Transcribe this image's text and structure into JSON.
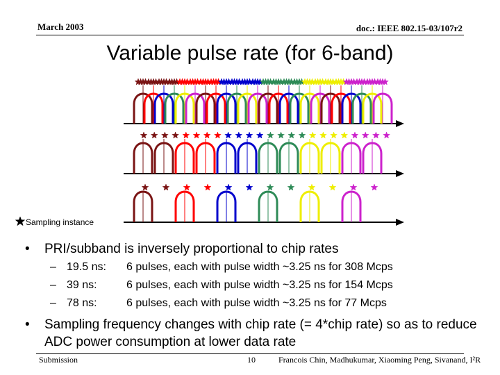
{
  "header": {
    "date": "March 2003",
    "doc_id": "doc.: IEEE 802.15-03/107r2"
  },
  "title": "Variable pulse rate (for 6-band)",
  "legend": {
    "label": "Sampling instance"
  },
  "colors": {
    "palette": [
      "#7a1414",
      "#ff0000",
      "#0000cc",
      "#2e8b57",
      "#eeee00",
      "#cc22cc"
    ],
    "star_row2": [
      "#7a1414",
      "#ff0000",
      "#0000cc",
      "#2e8b57",
      "#eeee00",
      "#cc22cc"
    ],
    "axis": "#000000"
  },
  "rows": [
    {
      "pri_ns": 19.5,
      "pulse_count": 24,
      "star_pattern": "group"
    },
    {
      "pri_ns": 39,
      "pulse_count": 12,
      "star_pattern": "double"
    },
    {
      "pri_ns": 78,
      "pulse_count": 6,
      "star_pattern": "single"
    }
  ],
  "bullets": [
    {
      "text": "PRI/subband is inversely proportional to chip rates"
    },
    {
      "text": "Sampling frequency changes with chip rate (= 4*chip rate) so as to reduce ADC power consumption at lower data rate"
    }
  ],
  "sub_items": [
    {
      "label": "19.5 ns:",
      "desc": "6 pulses, each with pulse width ~3.25 ns for 308 Mcps"
    },
    {
      "label": "39 ns:",
      "desc": "6 pulses, each with pulse width ~3.25 ns for 154 Mcps"
    },
    {
      "label": "78 ns:",
      "desc": "6 pulses, each with pulse width ~3.25 ns for 77 Mcps"
    }
  ],
  "footer": {
    "left": "Submission",
    "page": "10",
    "authors": "Francois Chin, Madhukumar, Xiaoming Peng, Sivanand, I²R"
  }
}
